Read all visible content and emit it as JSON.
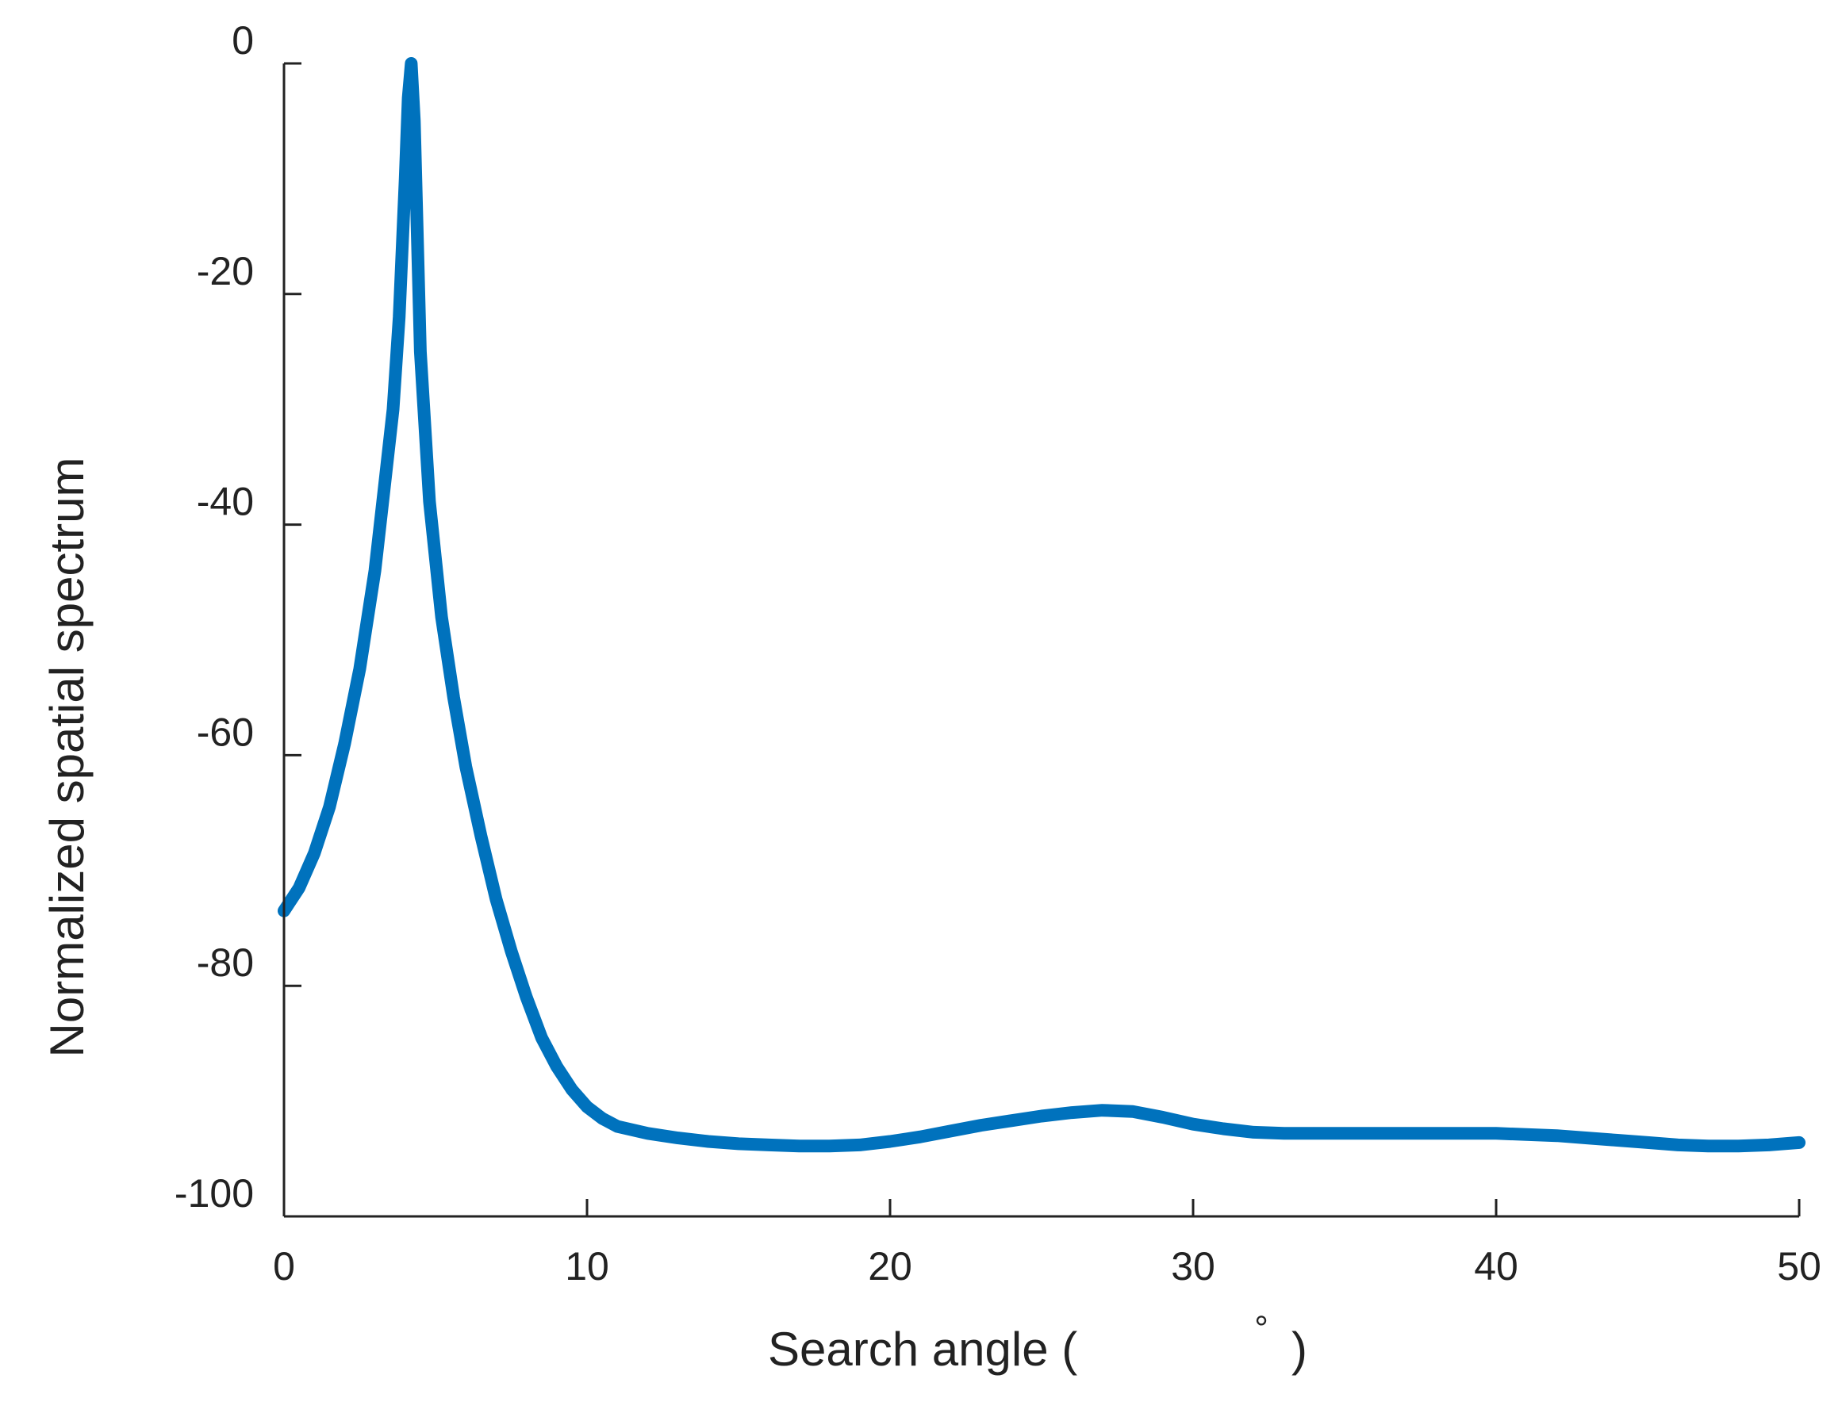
{
  "chart_data": {
    "type": "line",
    "title": "",
    "xlabel": "Search angle  (",
    "xlabel_unit": "°",
    "xlabel_close": ")",
    "ylabel": "Normalized spatial spectrum",
    "xlim": [
      0,
      50
    ],
    "ylim": [
      -100,
      0
    ],
    "x_ticks": [
      0,
      10,
      20,
      30,
      40,
      50
    ],
    "y_ticks": [
      0,
      -20,
      -40,
      -60,
      -80,
      -100
    ],
    "x_tick_labels": [
      "0",
      "10",
      "20",
      "30",
      "40",
      "50"
    ],
    "y_tick_labels": [
      "0",
      "-20",
      "-40",
      "-60",
      "-80",
      "-100"
    ],
    "grid": false,
    "legend": "none",
    "colors": {
      "series": "#0072bd",
      "axis": "#222222"
    },
    "series": [
      {
        "style": "line with circle markers",
        "x": [
          0,
          0.5,
          1,
          1.5,
          2,
          2.5,
          3,
          3.3,
          3.6,
          3.8,
          4.0,
          4.1,
          4.2,
          4.3,
          4.5,
          4.8,
          5.2,
          5.6,
          6,
          6.5,
          7,
          7.5,
          8,
          8.5,
          9,
          9.5,
          10,
          10.5,
          11,
          12,
          13,
          14,
          15,
          16,
          17,
          18,
          19,
          20,
          21,
          22,
          23,
          24,
          25,
          26,
          27,
          28,
          29,
          30,
          31,
          32,
          33,
          34,
          35,
          36,
          37,
          38,
          39,
          40,
          41,
          42,
          43,
          44,
          45,
          46,
          47,
          48,
          49,
          50
        ],
        "y": [
          -73.5,
          -71.5,
          -68.5,
          -64.5,
          -59,
          -52.5,
          -44,
          -37,
          -30,
          -22,
          -10,
          -3,
          0,
          -5,
          -25,
          -38,
          -48,
          -55,
          -61,
          -67,
          -72.5,
          -77,
          -81,
          -84.5,
          -87,
          -89,
          -90.5,
          -91.5,
          -92.2,
          -92.8,
          -93.2,
          -93.5,
          -93.7,
          -93.8,
          -93.9,
          -93.9,
          -93.8,
          -93.5,
          -93.1,
          -92.6,
          -92.1,
          -91.7,
          -91.3,
          -91.0,
          -90.8,
          -90.9,
          -91.4,
          -92.0,
          -92.4,
          -92.7,
          -92.8,
          -92.8,
          -92.8,
          -92.8,
          -92.8,
          -92.8,
          -92.8,
          -92.8,
          -92.9,
          -93.0,
          -93.2,
          -93.4,
          -93.6,
          -93.8,
          -93.9,
          -93.9,
          -93.8,
          -93.6
        ]
      }
    ]
  }
}
